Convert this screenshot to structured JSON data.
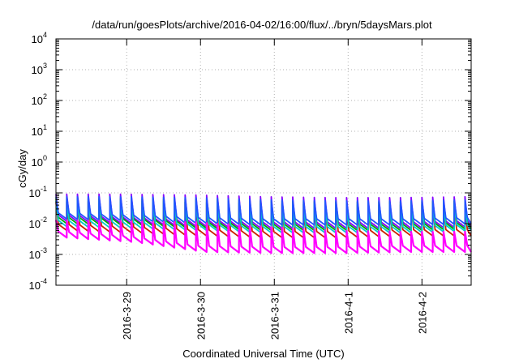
{
  "chart_data": {
    "type": "line",
    "title": "/data/run/goesPlots/archive/2016-04-02/16:00/flux/../bryn/5daysMars.plot",
    "xlabel": "Coordinated Universal Time (UTC)",
    "ylabel": "cGy/day",
    "yscale": "log",
    "ylim": [
      0.0001,
      10000
    ],
    "xlim": [
      "2016-03-28 01:00",
      "2016-04-02 16:00"
    ],
    "grid": true,
    "x_ticks": [
      "2016-3-29",
      "2016-3-30",
      "2016-3-31",
      "2016-4-1",
      "2016-4-2"
    ],
    "y_ticks": [
      {
        "base": "10",
        "exp": "-4"
      },
      {
        "base": "10",
        "exp": "-3"
      },
      {
        "base": "10",
        "exp": "-2"
      },
      {
        "base": "10",
        "exp": "-1"
      },
      {
        "base": "10",
        "exp": "0"
      },
      {
        "base": "10",
        "exp": "1"
      },
      {
        "base": "10",
        "exp": "2"
      },
      {
        "base": "10",
        "exp": "3"
      },
      {
        "base": "10",
        "exp": "4"
      }
    ],
    "sawtooth_period_hours": 3.5,
    "series": [
      {
        "color": "#ff00ff",
        "peak_values": [
          0.013,
          0.012,
          0.011,
          0.008,
          0.006,
          0.0055,
          0.0055
        ],
        "trough_values": [
          0.0035,
          0.0025,
          0.0012,
          0.0011,
          0.0011,
          0.0012,
          0.0012
        ]
      },
      {
        "color": "#cc2200",
        "peak_values": [
          0.05,
          0.055,
          0.05,
          0.045,
          0.04,
          0.04,
          0.045
        ],
        "trough_values": [
          0.006,
          0.005,
          0.004,
          0.0035,
          0.0035,
          0.004,
          0.004
        ]
      },
      {
        "color": "#8800ff",
        "peak_values": [
          0.09,
          0.09,
          0.085,
          0.075,
          0.07,
          0.07,
          0.075
        ],
        "trough_values": [
          0.012,
          0.01,
          0.008,
          0.007,
          0.007,
          0.007,
          0.008
        ]
      },
      {
        "color": "#00aa00",
        "peak_values": [
          0.065,
          0.065,
          0.06,
          0.055,
          0.05,
          0.05,
          0.055
        ],
        "trough_values": [
          0.01,
          0.009,
          0.007,
          0.006,
          0.006,
          0.006,
          0.007
        ]
      },
      {
        "color": "#00cccc",
        "peak_values": [
          0.055,
          0.055,
          0.05,
          0.045,
          0.042,
          0.042,
          0.045
        ],
        "trough_values": [
          0.008,
          0.007,
          0.006,
          0.005,
          0.005,
          0.005,
          0.006
        ]
      },
      {
        "color": "#2255ff",
        "peak_values": [
          0.075,
          0.075,
          0.07,
          0.06,
          0.055,
          0.055,
          0.06
        ],
        "trough_values": [
          0.014,
          0.012,
          0.01,
          0.009,
          0.009,
          0.009,
          0.01
        ]
      }
    ]
  }
}
